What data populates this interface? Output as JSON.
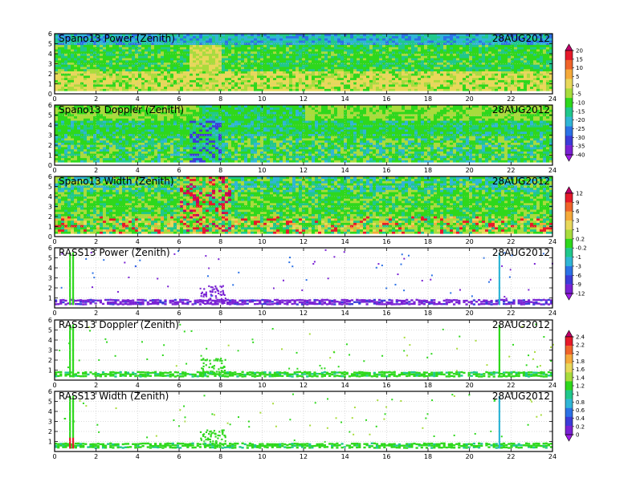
{
  "chart_data": [
    {
      "type": "heatmap",
      "title": "Spano13 Power (Zenith)",
      "date": "28AUG2012",
      "x_ticks": [
        "0",
        "2",
        "4",
        "6",
        "8",
        "10",
        "12",
        "14",
        "16",
        "18",
        "20",
        "22",
        "24"
      ],
      "y_ticks": [
        "0",
        "1",
        "2",
        "3",
        "4",
        "5",
        "6"
      ],
      "xlim": [
        0,
        24
      ],
      "ylim": [
        0,
        6
      ],
      "style": "full",
      "grid": true,
      "colorbar_labels": [
        "20",
        "15",
        "10",
        "5",
        "0",
        "-5",
        "-10",
        "-15",
        "-20",
        "-25",
        "-30",
        "-35",
        "-40"
      ]
    },
    {
      "type": "heatmap",
      "title": "Spano13 Doppler (Zenith)",
      "date": "28AUG2012",
      "x_ticks": [
        "0",
        "2",
        "4",
        "6",
        "8",
        "10",
        "12",
        "14",
        "16",
        "18",
        "20",
        "22",
        "24"
      ],
      "y_ticks": [
        "0",
        "1",
        "2",
        "3",
        "4",
        "5",
        "6"
      ],
      "xlim": [
        0,
        24
      ],
      "ylim": [
        0,
        6
      ],
      "style": "full",
      "grid": true
    },
    {
      "type": "heatmap",
      "title": "Spano13 Width (Zenith)",
      "date": "28AUG2012",
      "x_ticks": [
        "0",
        "2",
        "4",
        "6",
        "8",
        "10",
        "12",
        "14",
        "16",
        "18",
        "20",
        "22",
        "24"
      ],
      "y_ticks": [
        "0",
        "1",
        "2",
        "3",
        "4",
        "5",
        "6"
      ],
      "xlim": [
        0,
        24
      ],
      "ylim": [
        0,
        6
      ],
      "style": "full",
      "grid": true,
      "colorbar_labels": [
        "12",
        "9",
        "6",
        "3",
        "1",
        "0.2",
        "-0.2",
        "-1",
        "-3",
        "-6",
        "-9",
        "-12"
      ]
    },
    {
      "type": "heatmap",
      "title": "RASS13 Power (Zenith)",
      "date": "28AUG2012",
      "x_ticks": [
        "0",
        "2",
        "4",
        "6",
        "8",
        "10",
        "12",
        "14",
        "16",
        "18",
        "20",
        "22",
        "24"
      ],
      "y_ticks": [
        "1",
        "2",
        "3",
        "4",
        "5",
        "6"
      ],
      "xlim": [
        0,
        24
      ],
      "ylim": [
        0,
        6
      ],
      "style": "sparse",
      "grid": true
    },
    {
      "type": "heatmap",
      "title": "RASS13 Doppler (Zenith)",
      "date": "28AUG2012",
      "x_ticks": [
        "0",
        "2",
        "4",
        "6",
        "8",
        "10",
        "12",
        "14",
        "16",
        "18",
        "20",
        "22",
        "24"
      ],
      "y_ticks": [
        "1",
        "2",
        "3",
        "4",
        "5",
        "6"
      ],
      "xlim": [
        0,
        24
      ],
      "ylim": [
        0,
        6
      ],
      "style": "sparse",
      "grid": true,
      "colorbar_labels": [
        "2.4",
        "2.2",
        "2",
        "1.8",
        "1.6",
        "1.4",
        "1.2",
        "1",
        "0.8",
        "0.6",
        "0.4",
        "0.2",
        "0"
      ]
    },
    {
      "type": "heatmap",
      "title": "RASS13 Width (Zenith)",
      "date": "28AUG2012",
      "x_ticks": [
        "0",
        "2",
        "4",
        "6",
        "8",
        "10",
        "12",
        "14",
        "16",
        "18",
        "20",
        "22",
        "24"
      ],
      "y_ticks": [
        "1",
        "2",
        "3",
        "4",
        "5",
        "6"
      ],
      "xlim": [
        0,
        24
      ],
      "ylim": [
        0,
        6
      ],
      "style": "sparse",
      "grid": true
    }
  ],
  "colors": {
    "palette": [
      "#c0006a",
      "#e61a2a",
      "#f0642a",
      "#f5aa3a",
      "#e8d85a",
      "#a8dc3c",
      "#2ed81c",
      "#20c88c",
      "#30b6d6",
      "#2c72e6",
      "#3c3cd8",
      "#7a22d4",
      "#a01ce8"
    ],
    "axes": "#000000",
    "grid": "#b8b8b8",
    "background": "#ffffff"
  }
}
